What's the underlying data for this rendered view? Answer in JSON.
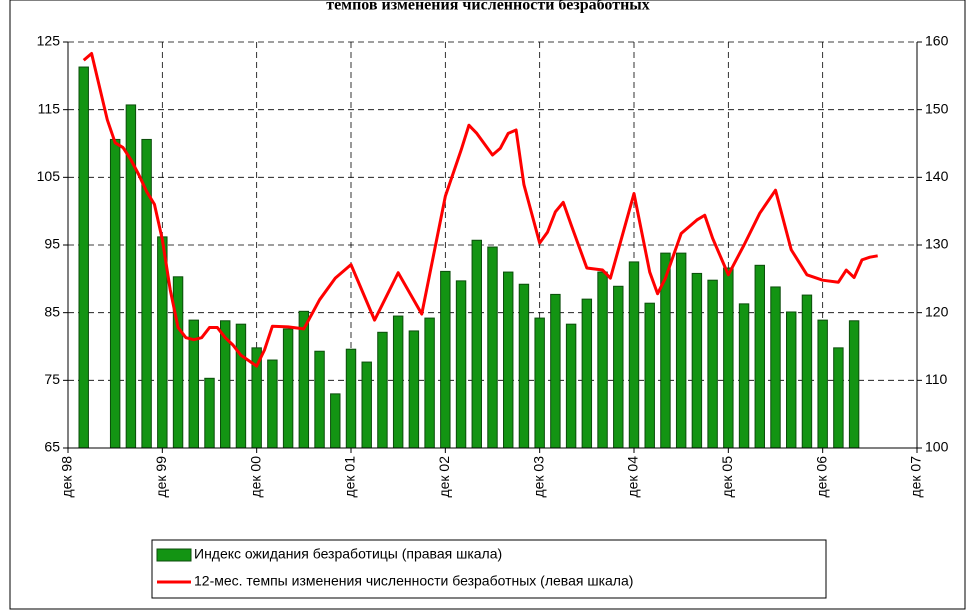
{
  "chart_data": {
    "type": "bar",
    "title": "темпов изменения численности безработных",
    "xlim": [
      "дек 98",
      "дек 07"
    ],
    "xticks": [
      "дек 98",
      "дек 99",
      "дек 00",
      "дек 01",
      "дек 02",
      "дек 03",
      "дек 04",
      "дек 05",
      "дек 06",
      "дек 07"
    ],
    "ylim": [
      65,
      125
    ],
    "yticks": [
      65,
      75,
      85,
      95,
      105,
      115,
      125
    ],
    "y2lim": [
      100,
      160
    ],
    "y2ticks": [
      100,
      110,
      120,
      130,
      140,
      150,
      160
    ],
    "grid": true,
    "legend": "bottom",
    "series": [
      {
        "name": "Индекс ожидания безработицы (правая шкала)",
        "type": "bar",
        "axis": "y2",
        "color": "#139413",
        "x": [
          "фев 99",
          "июн 99",
          "авг 99",
          "окт 99",
          "дек 99",
          "фев 00",
          "апр 00",
          "июн 00",
          "авг 00",
          "окт 00",
          "дек 00",
          "фев 01",
          "апр 01",
          "июн 01",
          "авг 01",
          "окт 01",
          "дек 01",
          "фев 02",
          "апр 02",
          "июн 02",
          "авг 02",
          "окт 02",
          "дек 02",
          "фев 03",
          "апр 03",
          "июн 03",
          "авг 03",
          "окт 03",
          "дек 03",
          "фев 04",
          "апр 04",
          "июн 04",
          "авг 04",
          "окт 04",
          "дек 04",
          "фев 05",
          "апр 05",
          "июн 05",
          "авг 05",
          "окт 05",
          "дек 05",
          "фев 06",
          "апр 06",
          "июн 06",
          "авг 06",
          "окт 06",
          "дек 06",
          "фев 07",
          "апр 07"
        ],
        "values": [
          156.3,
          145.6,
          150.7,
          145.6,
          131.2,
          125.3,
          118.9,
          110.3,
          118.8,
          118.3,
          114.8,
          113.0,
          117.6,
          120.2,
          114.3,
          108.0,
          114.6,
          112.7,
          117.1,
          119.5,
          117.3,
          119.2,
          126.1,
          124.7,
          130.7,
          129.7,
          126.0,
          124.2,
          119.2,
          122.7,
          118.3,
          122.0,
          126.0,
          123.9,
          127.5,
          121.4,
          128.8,
          128.8,
          125.8,
          124.8,
          126.6,
          121.3,
          127.0,
          123.8,
          120.1,
          122.6,
          118.9,
          114.8,
          118.8
        ]
      },
      {
        "name": "12-мес. темпы изменения численности безработных (левая шкала)",
        "type": "line",
        "axis": "y",
        "color": "#ff0000",
        "x": [
          "фев 99",
          "мар 99",
          "май 99",
          "июн 99",
          "июл 99",
          "авг 99",
          "сен 99",
          "окт 99",
          "ноя 99",
          "дек 99",
          "янв 00",
          "фев 00",
          "мар 00",
          "апр 00",
          "май 00",
          "июн 00",
          "июл 00",
          "авг 00",
          "сен 00",
          "окт 00",
          "дек 00",
          "янв 01",
          "фев 01",
          "апр 01",
          "июн 01",
          "авг 01",
          "окт 01",
          "дек 01",
          "мар 02",
          "июн 02",
          "сен 02",
          "дек 02",
          "фев 03",
          "мар 03",
          "апр 03",
          "июн 03",
          "июл 03",
          "авг 03",
          "сен 03",
          "окт 03",
          "дек 03",
          "янв 04",
          "фев 04",
          "мар 04",
          "апр 04",
          "июн 04",
          "авг 04",
          "сен 04",
          "дек 04",
          "фев 05",
          "мар 05",
          "апр 05",
          "июн 05",
          "авг 05",
          "сен 05",
          "окт 05",
          "дек 05",
          "фев 06",
          "апр 06",
          "июн 06",
          "авг 06",
          "окт 06",
          "дек 06",
          "фев 07",
          "мар 07",
          "апр 07",
          "май 07",
          "июн 07",
          "июл 07"
        ],
        "values": [
          122.3,
          123.3,
          113.5,
          110.1,
          109.4,
          107.6,
          105.4,
          102.9,
          101.0,
          95.8,
          88.4,
          82.8,
          81.3,
          81.0,
          81.3,
          82.8,
          82.8,
          81.3,
          80.2,
          78.7,
          77.1,
          79.5,
          83.0,
          82.9,
          82.6,
          86.9,
          90.1,
          92.1,
          83.9,
          90.9,
          84.8,
          102.2,
          109.0,
          112.7,
          111.5,
          108.3,
          109.3,
          111.5,
          112.0,
          103.9,
          95.3,
          96.9,
          99.9,
          101.3,
          98.0,
          91.6,
          91.3,
          90.1,
          102.6,
          91.0,
          87.8,
          90.1,
          96.7,
          98.7,
          99.4,
          96.0,
          90.6,
          95.0,
          99.7,
          103.1,
          94.3,
          90.6,
          89.8,
          89.5,
          91.3,
          90.2,
          92.8,
          93.2,
          93.4
        ]
      }
    ]
  }
}
